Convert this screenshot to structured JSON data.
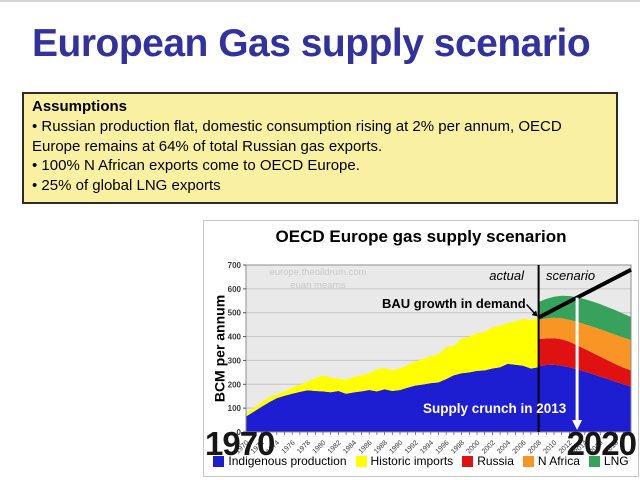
{
  "slide": {
    "title": "European Gas supply scenario",
    "title_color": "#32329F"
  },
  "assumptions": {
    "heading": "Assumptions",
    "bullets": [
      "• Russian production flat, domestic consumption rising at 2% per annum, OECD Europe remains at 64% of total Russian gas exports.",
      "• 100% N African exports come to OECD Europe.",
      "• 25% of global LNG exports"
    ],
    "bg_color": "#F9F1A1"
  },
  "chart": {
    "title": "OECD Europe gas supply scenarion",
    "ylabel": "BCM per annum",
    "watermark_line1": "europe.theoildrum.com",
    "watermark_line2": "euan mearns"
  },
  "chart_data": {
    "type": "area",
    "stacked": true,
    "title": "OECD Europe gas supply scenarion",
    "xlabel": "",
    "ylabel": "BCM per annum",
    "xlim": [
      1970,
      2020
    ],
    "ylim": [
      0,
      700
    ],
    "grid": "horizontal",
    "y_ticks": [
      0,
      100,
      200,
      300,
      400,
      500,
      600,
      700
    ],
    "x_tick_labels": [
      "1970",
      "1972",
      "1974",
      "1976",
      "1978",
      "1980",
      "1982",
      "1984",
      "1986",
      "1988",
      "1990",
      "1992",
      "1994",
      "1996",
      "1998",
      "2000",
      "2002",
      "2004",
      "2006",
      "2008",
      "2010",
      "2012",
      "2014",
      "2016",
      "2018"
    ],
    "divider_year": 2008,
    "historical": {
      "years": [
        1970,
        1971,
        1972,
        1973,
        1974,
        1975,
        1976,
        1977,
        1978,
        1979,
        1980,
        1981,
        1982,
        1983,
        1984,
        1985,
        1986,
        1987,
        1988,
        1989,
        1990,
        1991,
        1992,
        1993,
        1994,
        1995,
        1996,
        1997,
        1998,
        1999,
        2000,
        2001,
        2002,
        2003,
        2004,
        2005,
        2006,
        2007,
        2008
      ],
      "indigenous_top": [
        65,
        85,
        105,
        125,
        142,
        152,
        160,
        168,
        175,
        172,
        170,
        167,
        172,
        160,
        166,
        170,
        176,
        170,
        179,
        172,
        176,
        186,
        195,
        199,
        205,
        208,
        222,
        238,
        246,
        250,
        256,
        258,
        266,
        271,
        286,
        282,
        278,
        266,
        271
      ],
      "imports_top": [
        78,
        100,
        125,
        146,
        158,
        171,
        186,
        198,
        211,
        226,
        237,
        228,
        224,
        219,
        231,
        238,
        246,
        263,
        268,
        259,
        266,
        281,
        296,
        306,
        318,
        326,
        356,
        361,
        391,
        399,
        414,
        421,
        438,
        446,
        456,
        463,
        474,
        469,
        481
      ]
    },
    "scenario": {
      "years": [
        2008,
        2009,
        2010,
        2011,
        2012,
        2013,
        2014,
        2015,
        2016,
        2017,
        2018,
        2019,
        2020
      ],
      "indigenous_top": [
        275,
        281,
        282,
        278,
        271,
        263,
        253,
        243,
        232,
        222,
        211,
        200,
        190
      ],
      "russia_top": [
        390,
        392,
        393,
        388,
        378,
        364,
        348,
        332,
        316,
        300,
        284,
        270,
        258
      ],
      "n_africa_top": [
        470,
        476,
        479,
        477,
        470,
        462,
        452,
        442,
        431,
        419,
        407,
        396,
        385
      ],
      "lng_top": [
        545,
        558,
        567,
        571,
        570,
        565,
        557,
        547,
        536,
        523,
        510,
        496,
        482
      ]
    },
    "bau_line": {
      "years": [
        2008,
        2020
      ],
      "values": [
        480,
        680
      ]
    },
    "crunch_arrow_year": 2013,
    "annotations": {
      "actual": "actual",
      "scenario": "scenario",
      "bau": "BAU growth in demand",
      "crunch": "Supply crunch in 2013",
      "big_left": "1970",
      "big_right": "2020"
    },
    "colors": {
      "indigenous": "#1D1DD1",
      "imports": "#FFFF00",
      "russia": "#DF1111",
      "n_africa": "#F99525",
      "lng": "#37A25C",
      "plot_bg": "#E9E9E9",
      "gridline": "#C6C6C6",
      "plot_border": "#8E8E8E"
    },
    "legend": [
      {
        "label": "Indigenous production",
        "color": "#1D1DD1"
      },
      {
        "label": "Historic imports",
        "color": "#FFFF00"
      },
      {
        "label": "Russia",
        "color": "#DF1111"
      },
      {
        "label": "N Africa",
        "color": "#F99525"
      },
      {
        "label": "LNG",
        "color": "#37A25C"
      }
    ]
  }
}
